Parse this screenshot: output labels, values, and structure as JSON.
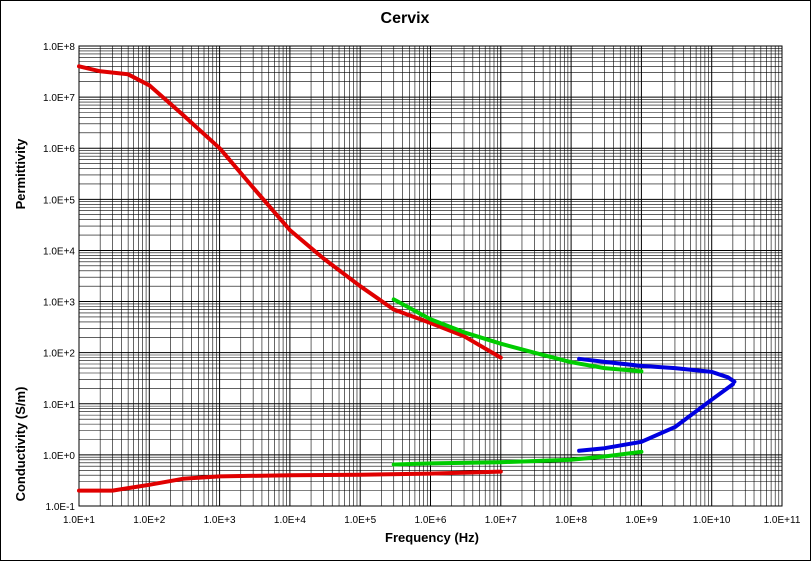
{
  "chart_data": {
    "type": "line",
    "title": "Cervix",
    "xlabel": "Frequency (Hz)",
    "ylabel_top": "Permittivity",
    "ylabel_bottom": "Conductivity (S/m)",
    "x_scale": "log",
    "y_scale": "log",
    "xlim": [
      10,
      100000000000
    ],
    "ylim": [
      0.1,
      100000000
    ],
    "grid": true,
    "legend": "none",
    "x_ticks": [
      {
        "value": 10,
        "label": "1.0E+1"
      },
      {
        "value": 100,
        "label": "1.0E+2"
      },
      {
        "value": 1000,
        "label": "1.0E+3"
      },
      {
        "value": 10000,
        "label": "1.0E+4"
      },
      {
        "value": 100000,
        "label": "1.0E+5"
      },
      {
        "value": 1000000,
        "label": "1.0E+6"
      },
      {
        "value": 10000000,
        "label": "1.0E+7"
      },
      {
        "value": 100000000,
        "label": "1.0E+8"
      },
      {
        "value": 1000000000,
        "label": "1.0E+9"
      },
      {
        "value": 10000000000,
        "label": "1.0E+10"
      },
      {
        "value": 100000000000,
        "label": "1.0E+11"
      }
    ],
    "y_ticks": [
      {
        "value": 0.1,
        "label": "1.0E-1"
      },
      {
        "value": 1,
        "label": "1.0E+0"
      },
      {
        "value": 10,
        "label": "1.0E+1"
      },
      {
        "value": 100,
        "label": "1.0E+2"
      },
      {
        "value": 1000,
        "label": "1.0E+3"
      },
      {
        "value": 10000,
        "label": "1.0E+4"
      },
      {
        "value": 100000,
        "label": "1.0E+5"
      },
      {
        "value": 1000000,
        "label": "1.0E+6"
      },
      {
        "value": 10000000,
        "label": "1.0E+7"
      },
      {
        "value": 100000000,
        "label": "1.0E+8"
      }
    ],
    "series": [
      {
        "color": "#e00000",
        "kind": "permittivity",
        "points": [
          [
            10,
            40000000
          ],
          [
            20,
            32000000
          ],
          [
            50,
            28000000
          ],
          [
            100,
            17000000
          ],
          [
            300,
            4500000
          ],
          [
            1000,
            1000000
          ],
          [
            3000,
            170000
          ],
          [
            10000,
            25000
          ],
          [
            30000,
            7000
          ],
          [
            100000,
            2000
          ],
          [
            300000,
            700
          ],
          [
            1000000,
            380
          ],
          [
            3000000,
            210
          ],
          [
            10000000,
            80
          ]
        ]
      },
      {
        "color": "#e00000",
        "kind": "conductivity",
        "points": [
          [
            10,
            0.2
          ],
          [
            30,
            0.2
          ],
          [
            100,
            0.26
          ],
          [
            300,
            0.34
          ],
          [
            1000,
            0.38
          ],
          [
            10000,
            0.4
          ],
          [
            100000,
            0.41
          ],
          [
            1000000,
            0.43
          ],
          [
            10000000,
            0.47
          ]
        ]
      },
      {
        "color": "#00cc00",
        "kind": "permittivity",
        "points": [
          [
            300000,
            1100
          ],
          [
            1000000,
            450
          ],
          [
            3000000,
            250
          ],
          [
            10000000,
            150
          ],
          [
            30000000,
            100
          ],
          [
            100000000,
            65
          ],
          [
            300000000,
            50
          ],
          [
            1000000000,
            43
          ]
        ]
      },
      {
        "color": "#00cc00",
        "kind": "conductivity",
        "points": [
          [
            300000,
            0.65
          ],
          [
            1000000,
            0.68
          ],
          [
            10000000,
            0.72
          ],
          [
            100000000,
            0.8
          ],
          [
            300000000,
            0.93
          ],
          [
            1000000000,
            1.15
          ]
        ]
      },
      {
        "color": "#0000e0",
        "kind": "permittivity",
        "points": [
          [
            130000000,
            76
          ],
          [
            300000000,
            66
          ],
          [
            1000000000,
            55
          ],
          [
            3000000000,
            50
          ],
          [
            10000000000,
            42
          ],
          [
            17000000000,
            33
          ],
          [
            21000000000,
            27
          ]
        ]
      },
      {
        "color": "#0000e0",
        "kind": "conductivity",
        "points": [
          [
            130000000,
            1.2
          ],
          [
            300000000,
            1.35
          ],
          [
            1000000000,
            1.8
          ],
          [
            3000000000,
            3.5
          ],
          [
            10000000000,
            12
          ],
          [
            20000000000,
            24
          ]
        ]
      }
    ]
  }
}
